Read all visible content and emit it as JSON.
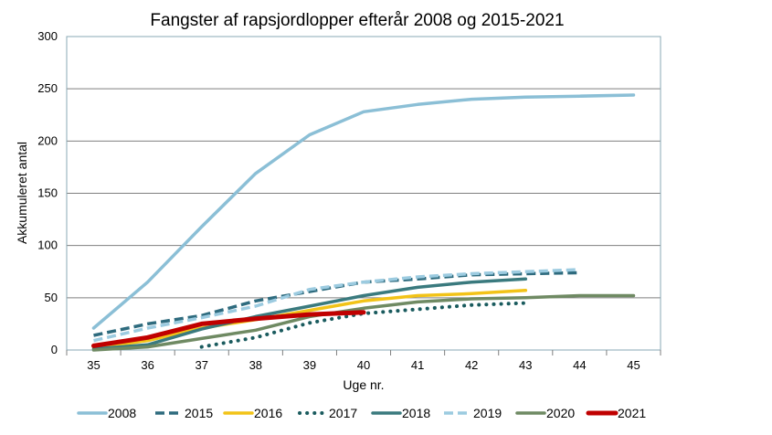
{
  "chart_data": {
    "type": "line",
    "title": "Fangster af rapsjordlopper efterår 2008 og 2015-2021",
    "xlabel": "Uge nr.",
    "ylabel": "Akkumuleret antal",
    "xlim": [
      35,
      45
    ],
    "ylim": [
      0,
      300
    ],
    "x_ticks": [
      "35",
      "36",
      "37",
      "38",
      "39",
      "40",
      "41",
      "42",
      "43",
      "44",
      "45"
    ],
    "y_ticks": [
      "0",
      "50",
      "100",
      "150",
      "200",
      "250",
      "300"
    ],
    "grid": true,
    "legend_position": "bottom",
    "series": [
      {
        "name": "2008",
        "color": "#8bbfd6",
        "style": "solid",
        "x": [
          35,
          36,
          37,
          38,
          39,
          40,
          41,
          42,
          43,
          44,
          45
        ],
        "y": [
          21,
          65,
          118,
          169,
          206,
          228,
          235,
          240,
          242,
          243,
          244
        ]
      },
      {
        "name": "2015",
        "color": "#2e6b7e",
        "style": "dashed",
        "x": [
          35,
          36,
          37,
          38,
          39,
          40,
          41,
          42,
          43,
          44
        ],
        "y": [
          14,
          25,
          33,
          47,
          56,
          65,
          68,
          72,
          73,
          74
        ]
      },
      {
        "name": "2016",
        "color": "#f2c318",
        "style": "solid",
        "x": [
          35,
          36,
          37,
          38,
          39,
          40,
          41,
          42,
          43
        ],
        "y": [
          2,
          9,
          21,
          29,
          38,
          47,
          52,
          54,
          57
        ]
      },
      {
        "name": "2017",
        "color": "#1a5b5e",
        "style": "dotted",
        "x": [
          37,
          38,
          39,
          40,
          41,
          42,
          43
        ],
        "y": [
          3,
          12,
          26,
          35,
          39,
          43,
          45
        ]
      },
      {
        "name": "2018",
        "color": "#3a7a7e",
        "style": "solid",
        "x": [
          35,
          36,
          37,
          38,
          39,
          40,
          41,
          42,
          43
        ],
        "y": [
          1,
          5,
          20,
          32,
          42,
          52,
          60,
          65,
          68
        ]
      },
      {
        "name": "2019",
        "color": "#9ccbe0",
        "style": "dashed",
        "x": [
          35,
          36,
          37,
          38,
          39,
          40,
          41,
          42,
          43,
          44
        ],
        "y": [
          9,
          21,
          31,
          42,
          58,
          65,
          70,
          73,
          75,
          77
        ]
      },
      {
        "name": "2020",
        "color": "#6f8a63",
        "style": "solid",
        "x": [
          35,
          36,
          37,
          38,
          39,
          40,
          41,
          42,
          43,
          44,
          45
        ],
        "y": [
          0,
          3,
          11,
          19,
          32,
          40,
          46,
          49,
          50,
          52,
          52
        ]
      },
      {
        "name": "2021",
        "color": "#c00000",
        "style": "solid",
        "x": [
          35,
          36,
          37,
          38,
          39,
          40
        ],
        "y": [
          4,
          12,
          25,
          30,
          34,
          36
        ]
      }
    ]
  }
}
